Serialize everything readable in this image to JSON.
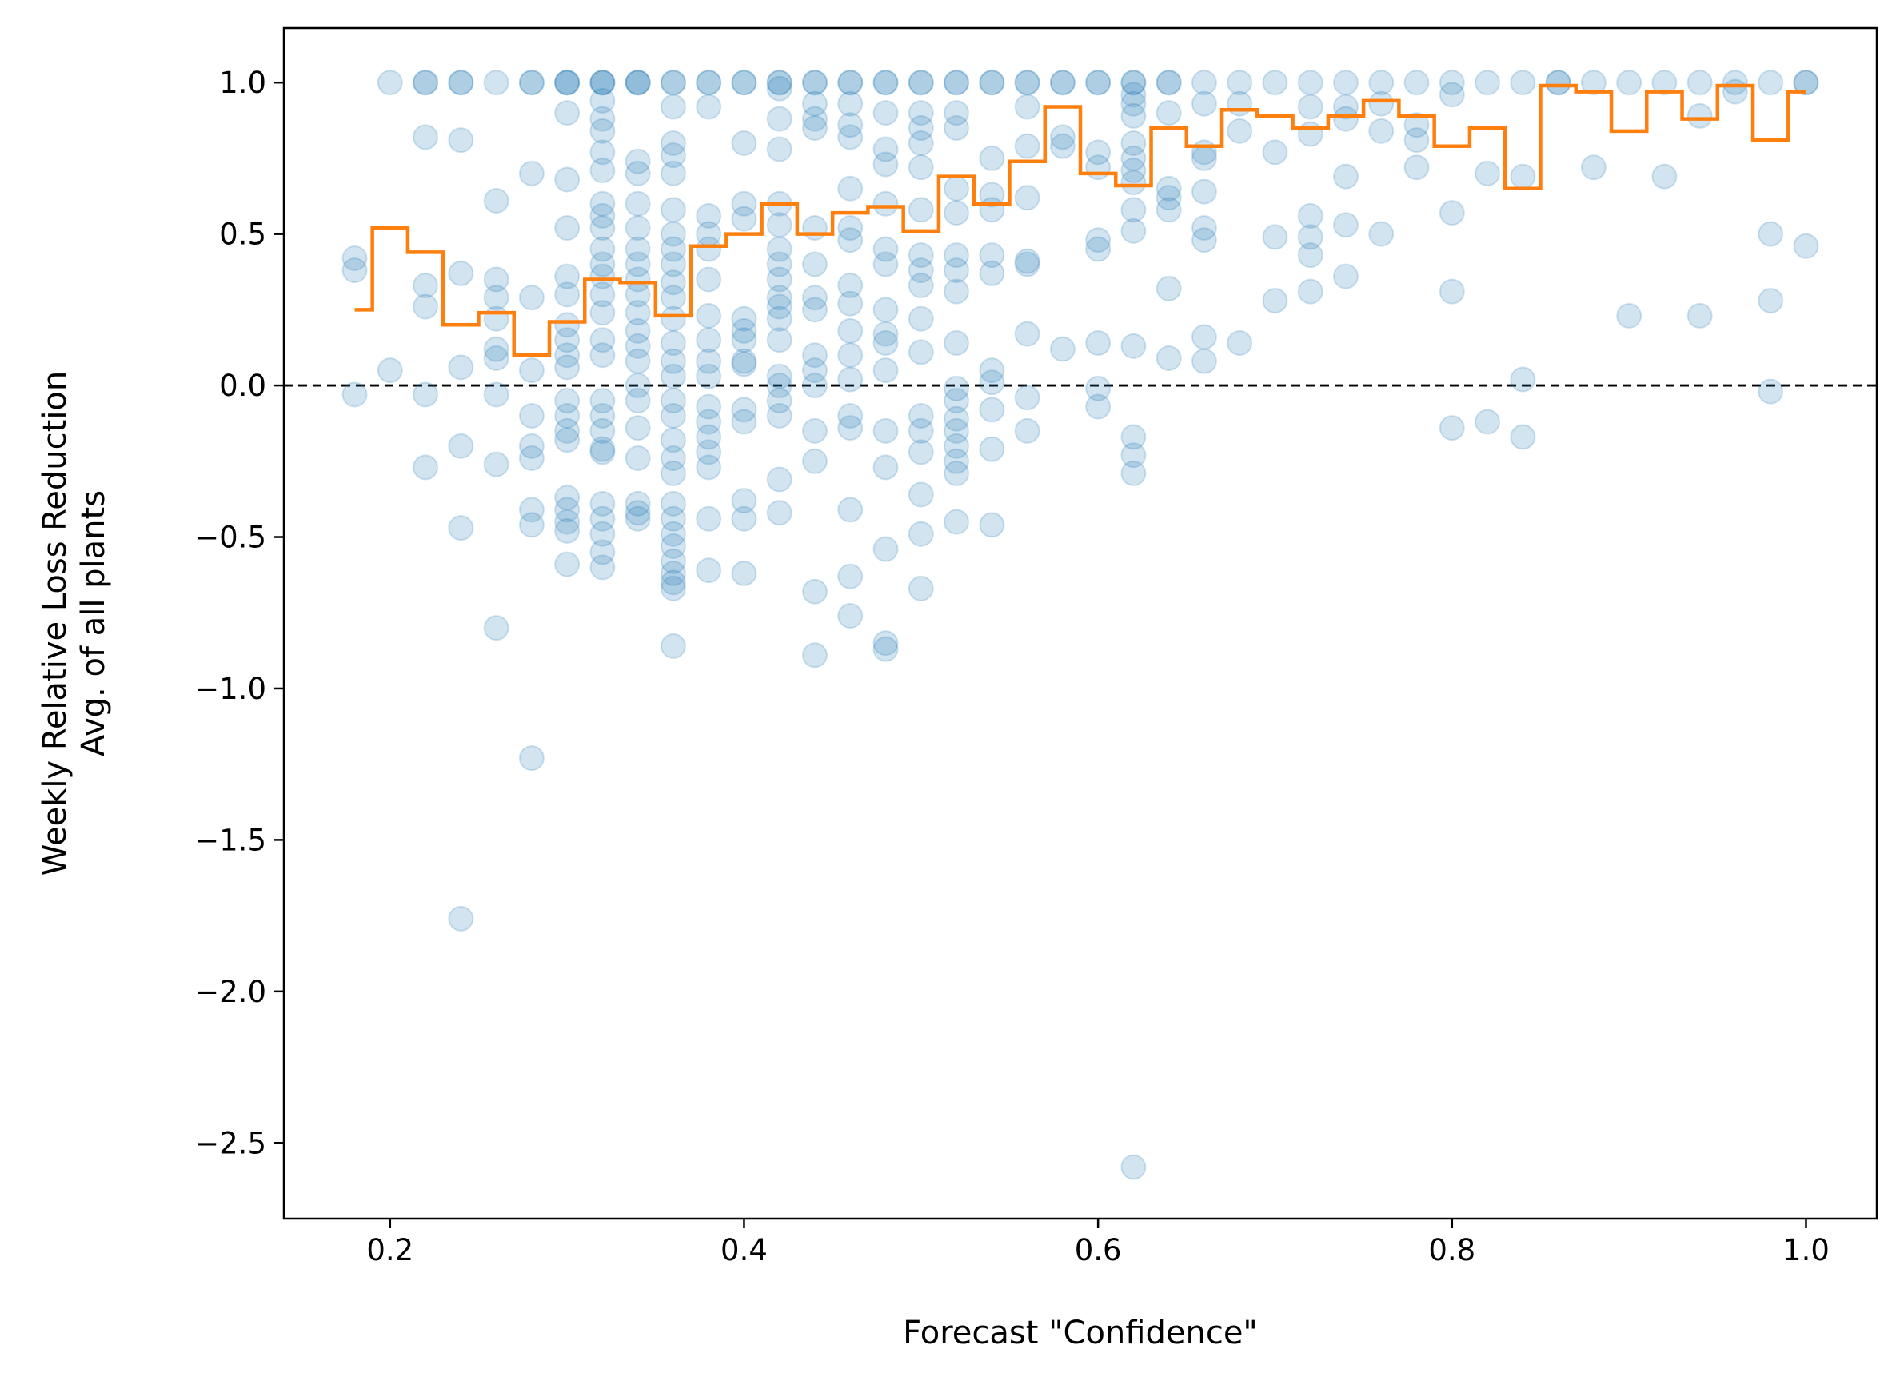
{
  "chart_data": {
    "type": "scatter",
    "xlabel": "Forecast \"Confidence\"",
    "ylabel_lines": [
      "Weekly Relative Loss Reduction",
      "Avg. of all plants"
    ],
    "xlim": [
      0.14,
      1.04
    ],
    "ylim": [
      -2.75,
      1.18
    ],
    "xticks": [
      0.2,
      0.4,
      0.6,
      0.8,
      1.0
    ],
    "xtick_labels": [
      "0.2",
      "0.4",
      "0.6",
      "0.8",
      "1.0"
    ],
    "yticks": [
      1.0,
      0.5,
      0.0,
      -0.5,
      -1.0,
      -1.5,
      -2.0,
      -2.5
    ],
    "ytick_labels": [
      "1.0",
      "0.5",
      "0.0",
      "−0.5",
      "−1.0",
      "−1.5",
      "−2.0",
      "−2.5"
    ],
    "reference_line": {
      "y": 0.0,
      "style": "dashed",
      "color": "#000000"
    },
    "colors": {
      "scatter": "#1f77b4",
      "step": "#ff7f0e"
    },
    "scatter": {
      "name": "",
      "alpha": 0.2,
      "columns": [
        {
          "x": 0.18,
          "y": [
            0.42,
            0.38,
            -0.03
          ]
        },
        {
          "x": 0.2,
          "y": [
            1.0,
            0.05
          ]
        },
        {
          "x": 0.22,
          "y": [
            1.0,
            1.0,
            0.82,
            0.33,
            0.26,
            -0.03,
            -0.27
          ]
        },
        {
          "x": 0.24,
          "y": [
            1.0,
            1.0,
            0.81,
            0.37,
            0.06,
            -0.2,
            -0.47,
            -1.76
          ]
        },
        {
          "x": 0.26,
          "y": [
            1.0,
            0.61,
            0.35,
            0.29,
            0.22,
            0.12,
            0.09,
            -0.03,
            -0.26,
            -0.8
          ]
        },
        {
          "x": 0.28,
          "y": [
            1.0,
            1.0,
            0.7,
            0.29,
            0.05,
            -0.1,
            -0.2,
            -0.24,
            -0.41,
            -0.46,
            -1.23
          ]
        },
        {
          "x": 0.3,
          "y": [
            1.0,
            1.0,
            1.0,
            0.9,
            0.68,
            0.52,
            0.36,
            0.3,
            0.2,
            0.15,
            0.1,
            0.06,
            -0.05,
            -0.1,
            -0.15,
            -0.18,
            -0.37,
            -0.41,
            -0.45,
            -0.48,
            -0.59
          ]
        },
        {
          "x": 0.32,
          "y": [
            1.0,
            1.0,
            1.0,
            0.94,
            0.88,
            0.84,
            0.77,
            0.71,
            0.6,
            0.56,
            0.52,
            0.45,
            0.4,
            0.36,
            0.3,
            0.24,
            0.15,
            0.1,
            -0.05,
            -0.1,
            -0.15,
            -0.21,
            -0.22,
            -0.39,
            -0.44,
            -0.49,
            -0.55,
            -0.6
          ]
        },
        {
          "x": 0.34,
          "y": [
            1.0,
            1.0,
            1.0,
            0.74,
            0.7,
            0.6,
            0.52,
            0.45,
            0.4,
            0.35,
            0.3,
            0.24,
            0.18,
            0.13,
            0.08,
            0.0,
            -0.05,
            -0.14,
            -0.24,
            -0.39,
            -0.42,
            -0.44
          ]
        },
        {
          "x": 0.36,
          "y": [
            1.0,
            1.0,
            0.92,
            0.8,
            0.76,
            0.7,
            0.58,
            0.5,
            0.45,
            0.4,
            0.34,
            0.29,
            0.22,
            0.14,
            0.08,
            0.03,
            -0.05,
            -0.1,
            -0.18,
            -0.24,
            -0.29,
            -0.39,
            -0.44,
            -0.49,
            -0.53,
            -0.58,
            -0.62,
            -0.65,
            -0.67,
            -0.86
          ]
        },
        {
          "x": 0.38,
          "y": [
            1.0,
            1.0,
            0.92,
            0.56,
            0.5,
            0.45,
            0.35,
            0.23,
            0.15,
            0.08,
            0.03,
            -0.07,
            -0.12,
            -0.17,
            -0.22,
            -0.27,
            -0.44,
            -0.61
          ]
        },
        {
          "x": 0.4,
          "y": [
            1.0,
            1.0,
            0.8,
            0.6,
            0.55,
            0.22,
            0.18,
            0.15,
            0.08,
            0.07,
            -0.08,
            -0.12,
            -0.38,
            -0.44,
            -0.62
          ]
        },
        {
          "x": 0.42,
          "y": [
            1.0,
            1.0,
            0.98,
            0.88,
            0.78,
            0.6,
            0.53,
            0.45,
            0.4,
            0.35,
            0.29,
            0.26,
            0.22,
            0.15,
            0.03,
            0.0,
            -0.05,
            -0.1,
            -0.31,
            -0.42
          ]
        },
        {
          "x": 0.44,
          "y": [
            1.0,
            1.0,
            0.93,
            0.88,
            0.85,
            0.52,
            0.4,
            0.29,
            0.25,
            0.1,
            0.05,
            0.0,
            -0.15,
            -0.25,
            -0.68,
            -0.89
          ]
        },
        {
          "x": 0.46,
          "y": [
            1.0,
            1.0,
            0.93,
            0.86,
            0.82,
            0.65,
            0.52,
            0.48,
            0.33,
            0.27,
            0.18,
            0.1,
            0.02,
            -0.1,
            -0.14,
            -0.41,
            -0.63,
            -0.76
          ]
        },
        {
          "x": 0.48,
          "y": [
            1.0,
            1.0,
            0.9,
            0.78,
            0.73,
            0.6,
            0.45,
            0.4,
            0.25,
            0.17,
            0.14,
            0.05,
            -0.15,
            -0.27,
            -0.54,
            -0.85,
            -0.87
          ]
        },
        {
          "x": 0.5,
          "y": [
            1.0,
            1.0,
            0.9,
            0.85,
            0.8,
            0.72,
            0.58,
            0.43,
            0.38,
            0.33,
            0.22,
            0.11,
            -0.1,
            -0.15,
            -0.22,
            -0.36,
            -0.49,
            -0.67
          ]
        },
        {
          "x": 0.52,
          "y": [
            1.0,
            1.0,
            0.9,
            0.85,
            0.65,
            0.57,
            0.43,
            0.38,
            0.31,
            0.14,
            -0.01,
            -0.05,
            -0.11,
            -0.15,
            -0.2,
            -0.25,
            -0.29,
            -0.45
          ]
        },
        {
          "x": 0.54,
          "y": [
            1.0,
            1.0,
            0.75,
            0.63,
            0.58,
            0.43,
            0.37,
            0.05,
            0.01,
            -0.08,
            -0.21,
            -0.46
          ]
        },
        {
          "x": 0.56,
          "y": [
            1.0,
            1.0,
            0.92,
            0.79,
            0.62,
            0.41,
            0.4,
            0.17,
            -0.04,
            -0.15
          ]
        },
        {
          "x": 0.58,
          "y": [
            1.0,
            1.0,
            0.82,
            0.79,
            0.12
          ]
        },
        {
          "x": 0.6,
          "y": [
            1.0,
            1.0,
            0.77,
            0.72,
            0.48,
            0.45,
            0.14,
            -0.01,
            -0.07
          ]
        },
        {
          "x": 0.62,
          "y": [
            1.0,
            1.0,
            0.96,
            0.93,
            0.89,
            0.8,
            0.75,
            0.71,
            0.67,
            0.58,
            0.51,
            0.13,
            -0.17,
            -0.23,
            -0.29,
            -2.58
          ]
        },
        {
          "x": 0.64,
          "y": [
            1.0,
            1.0,
            0.9,
            0.65,
            0.62,
            0.58,
            0.32,
            0.09
          ]
        },
        {
          "x": 0.66,
          "y": [
            1.0,
            0.93,
            0.77,
            0.75,
            0.64,
            0.52,
            0.48,
            0.16,
            0.08
          ]
        },
        {
          "x": 0.68,
          "y": [
            1.0,
            0.93,
            0.84,
            0.14
          ]
        },
        {
          "x": 0.7,
          "y": [
            1.0,
            0.77,
            0.49,
            0.28
          ]
        },
        {
          "x": 0.72,
          "y": [
            1.0,
            0.92,
            0.83,
            0.56,
            0.49,
            0.43,
            0.31
          ]
        },
        {
          "x": 0.74,
          "y": [
            1.0,
            0.92,
            0.88,
            0.69,
            0.53,
            0.36
          ]
        },
        {
          "x": 0.76,
          "y": [
            1.0,
            0.93,
            0.84,
            0.5
          ]
        },
        {
          "x": 0.78,
          "y": [
            1.0,
            0.86,
            0.81,
            0.72
          ]
        },
        {
          "x": 0.8,
          "y": [
            1.0,
            0.96,
            0.57,
            0.31,
            -0.14
          ]
        },
        {
          "x": 0.82,
          "y": [
            1.0,
            0.7,
            -0.12
          ]
        },
        {
          "x": 0.84,
          "y": [
            1.0,
            0.69,
            0.02,
            -0.17
          ]
        },
        {
          "x": 0.86,
          "y": [
            1.0,
            1.0
          ]
        },
        {
          "x": 0.88,
          "y": [
            1.0,
            0.72
          ]
        },
        {
          "x": 0.9,
          "y": [
            1.0,
            0.23
          ]
        },
        {
          "x": 0.92,
          "y": [
            1.0,
            0.69
          ]
        },
        {
          "x": 0.94,
          "y": [
            1.0,
            0.89,
            0.23
          ]
        },
        {
          "x": 0.96,
          "y": [
            1.0,
            0.97
          ]
        },
        {
          "x": 0.98,
          "y": [
            1.0,
            0.5,
            0.28,
            -0.02
          ]
        },
        {
          "x": 1.0,
          "y": [
            1.0,
            1.0,
            0.46
          ]
        }
      ]
    },
    "step": {
      "name": "",
      "x": [
        0.18,
        0.19,
        0.21,
        0.23,
        0.25,
        0.27,
        0.29,
        0.31,
        0.33,
        0.35,
        0.37,
        0.39,
        0.41,
        0.43,
        0.45,
        0.47,
        0.49,
        0.51,
        0.53,
        0.55,
        0.57,
        0.59,
        0.61,
        0.63,
        0.65,
        0.67,
        0.69,
        0.71,
        0.73,
        0.75,
        0.77,
        0.79,
        0.81,
        0.83,
        0.85,
        0.87,
        0.89,
        0.91,
        0.93,
        0.95,
        0.97,
        0.99,
        1.0
      ],
      "y": [
        0.25,
        0.52,
        0.44,
        0.2,
        0.24,
        0.1,
        0.21,
        0.35,
        0.34,
        0.23,
        0.46,
        0.5,
        0.6,
        0.5,
        0.57,
        0.59,
        0.51,
        0.69,
        0.6,
        0.74,
        0.92,
        0.7,
        0.66,
        0.85,
        0.79,
        0.91,
        0.89,
        0.85,
        0.89,
        0.94,
        0.89,
        0.79,
        0.85,
        0.65,
        0.99,
        0.97,
        0.84,
        0.97,
        0.88,
        0.99,
        0.81,
        0.97,
        0.97
      ]
    }
  }
}
